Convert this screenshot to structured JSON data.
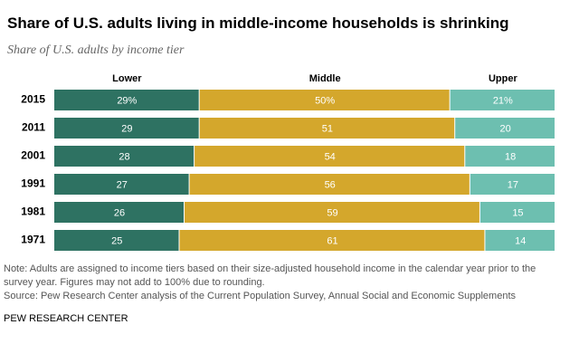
{
  "chart_data": {
    "type": "stacked-barh",
    "title": "Share of U.S. adults living in middle-income households is shrinking",
    "subtitle": "Share of U.S. adults by income tier",
    "categories": [
      "2015",
      "2011",
      "2001",
      "1991",
      "1981",
      "1971"
    ],
    "xlim": [
      0,
      100
    ],
    "series": [
      {
        "name": "Lower",
        "color": "#2e7262",
        "values": [
          29,
          29,
          28,
          27,
          26,
          25
        ],
        "value_labels": [
          "29%",
          "29",
          "28",
          "27",
          "26",
          "25"
        ]
      },
      {
        "name": "Middle",
        "color": "#d4a72c",
        "values": [
          50,
          51,
          54,
          56,
          59,
          61
        ],
        "value_labels": [
          "50%",
          "51",
          "54",
          "56",
          "59",
          "61"
        ]
      },
      {
        "name": "Upper",
        "color": "#6dbfb0",
        "values": [
          21,
          20,
          18,
          17,
          15,
          14
        ],
        "value_labels": [
          "21%",
          "20",
          "18",
          "17",
          "15",
          "14"
        ]
      }
    ],
    "note": "Note: Adults are assigned to income tiers based on their size-adjusted household income in the calendar year prior to the survey year. Figures may not add to 100% due to rounding.",
    "source": "Source: Pew Research Center analysis of the Current Population Survey, Annual Social and Economic Supplements",
    "footer": "PEW RESEARCH CENTER"
  }
}
